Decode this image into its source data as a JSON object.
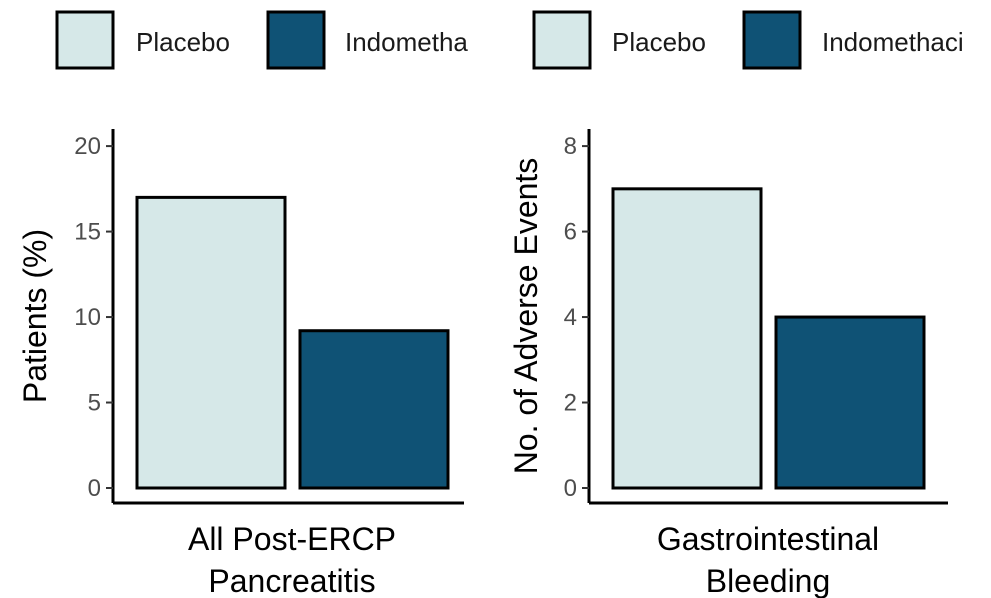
{
  "chart_data": [
    {
      "type": "bar",
      "categories": [
        "All Post-ERCP Pancreatitis"
      ],
      "category_lines": [
        "All Post-ERCP",
        "Pancreatitis"
      ],
      "series": [
        {
          "name": "Placebo",
          "values": [
            17
          ],
          "color": "#d6e8e8"
        },
        {
          "name": "Indometha",
          "values": [
            9.2
          ],
          "color": "#0f5275"
        }
      ],
      "ylabel": "Patients (%)",
      "xlabel": "",
      "ylim": [
        0,
        21
      ],
      "yticks": [
        0,
        5,
        10,
        15,
        20
      ],
      "grid": false,
      "legend": "top"
    },
    {
      "type": "bar",
      "categories": [
        "Gastrointestinal Bleeding"
      ],
      "category_lines": [
        "Gastrointestinal",
        "Bleeding"
      ],
      "series": [
        {
          "name": "Placebo",
          "values": [
            7
          ],
          "color": "#d6e8e8"
        },
        {
          "name": "Indomethaci",
          "values": [
            4
          ],
          "color": "#0f5275"
        }
      ],
      "ylabel": "No. of Adverse Events",
      "xlabel": "",
      "ylim": [
        0,
        8.4
      ],
      "yticks": [
        0,
        2,
        4,
        6,
        8
      ],
      "grid": false,
      "legend": "top"
    }
  ]
}
